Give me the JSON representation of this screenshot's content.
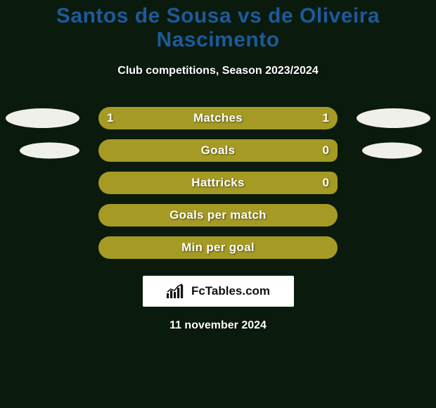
{
  "background_color": "#0a1a0d",
  "title": "Santos de Sousa vs de Oliveira Nascimento",
  "title_color": "#1c5a9a",
  "title_fontsize": 30,
  "subtitle": "Club competitions, Season 2023/2024",
  "subtitle_fontsize": 16,
  "stats": [
    {
      "label": "Matches",
      "left_val": "1",
      "right_val": "1",
      "left_pct": 50,
      "right_pct": 50,
      "show_ellipses": true,
      "ellipse_small": false
    },
    {
      "label": "Goals",
      "left_val": "",
      "right_val": "0",
      "left_pct": 97,
      "right_pct": 3,
      "show_ellipses": true,
      "ellipse_small": true
    },
    {
      "label": "Hattricks",
      "left_val": "",
      "right_val": "0",
      "left_pct": 97,
      "right_pct": 3,
      "show_ellipses": false,
      "ellipse_small": false
    },
    {
      "label": "Goals per match",
      "left_val": "",
      "right_val": "",
      "left_pct": 100,
      "right_pct": 0,
      "show_ellipses": false,
      "ellipse_small": false
    },
    {
      "label": "Min per goal",
      "left_val": "",
      "right_val": "",
      "left_pct": 100,
      "right_pct": 0,
      "show_ellipses": false,
      "ellipse_small": false
    }
  ],
  "bar": {
    "track_width": 340,
    "track_height": 32,
    "left_color": "#a59b24",
    "right_color": "#a59b24",
    "single_color": "#a59b24",
    "border_radius": 16
  },
  "ellipse_color": "#f0f0ea",
  "branding": {
    "text": "FcTables.com",
    "icon_color": "#111111",
    "bg": "#ffffff"
  },
  "date": "11 november 2024"
}
